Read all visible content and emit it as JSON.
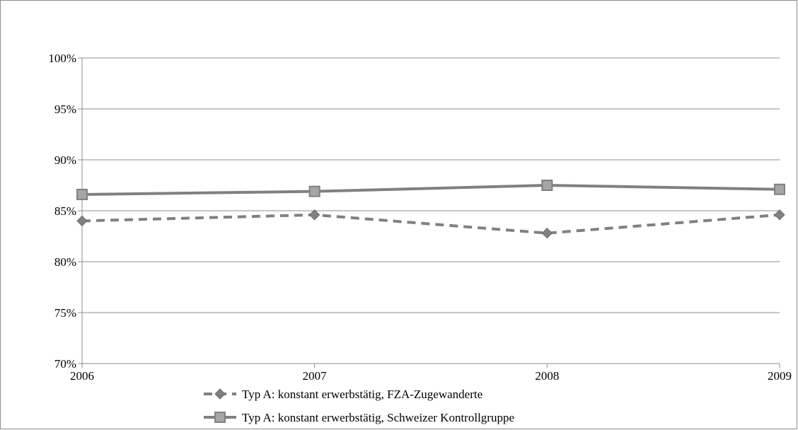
{
  "chart_data": {
    "type": "line",
    "x": [
      "2006",
      "2007",
      "2008",
      "2009"
    ],
    "ylim": [
      0.7,
      1.0
    ],
    "yticks": [
      0.7,
      0.75,
      0.8,
      0.85,
      0.9,
      0.95,
      1.0
    ],
    "ytick_labels": [
      "70%",
      "75%",
      "80%",
      "85%",
      "90%",
      "95%",
      "100%"
    ],
    "grid": true,
    "legend_position": "bottom",
    "series": [
      {
        "name": "Typ A: konstant erwerbstätig, FZA-Zugewanderte",
        "values": [
          0.84,
          0.846,
          0.828,
          0.846
        ],
        "color": "#808080",
        "line_style": "dashed",
        "marker": "diamond"
      },
      {
        "name": "Typ A: konstant erwerbstätig, Schweizer Kontrollgruppe",
        "values": [
          0.866,
          0.869,
          0.875,
          0.871
        ],
        "color": "#808080",
        "line_style": "solid",
        "marker": "square"
      }
    ]
  }
}
